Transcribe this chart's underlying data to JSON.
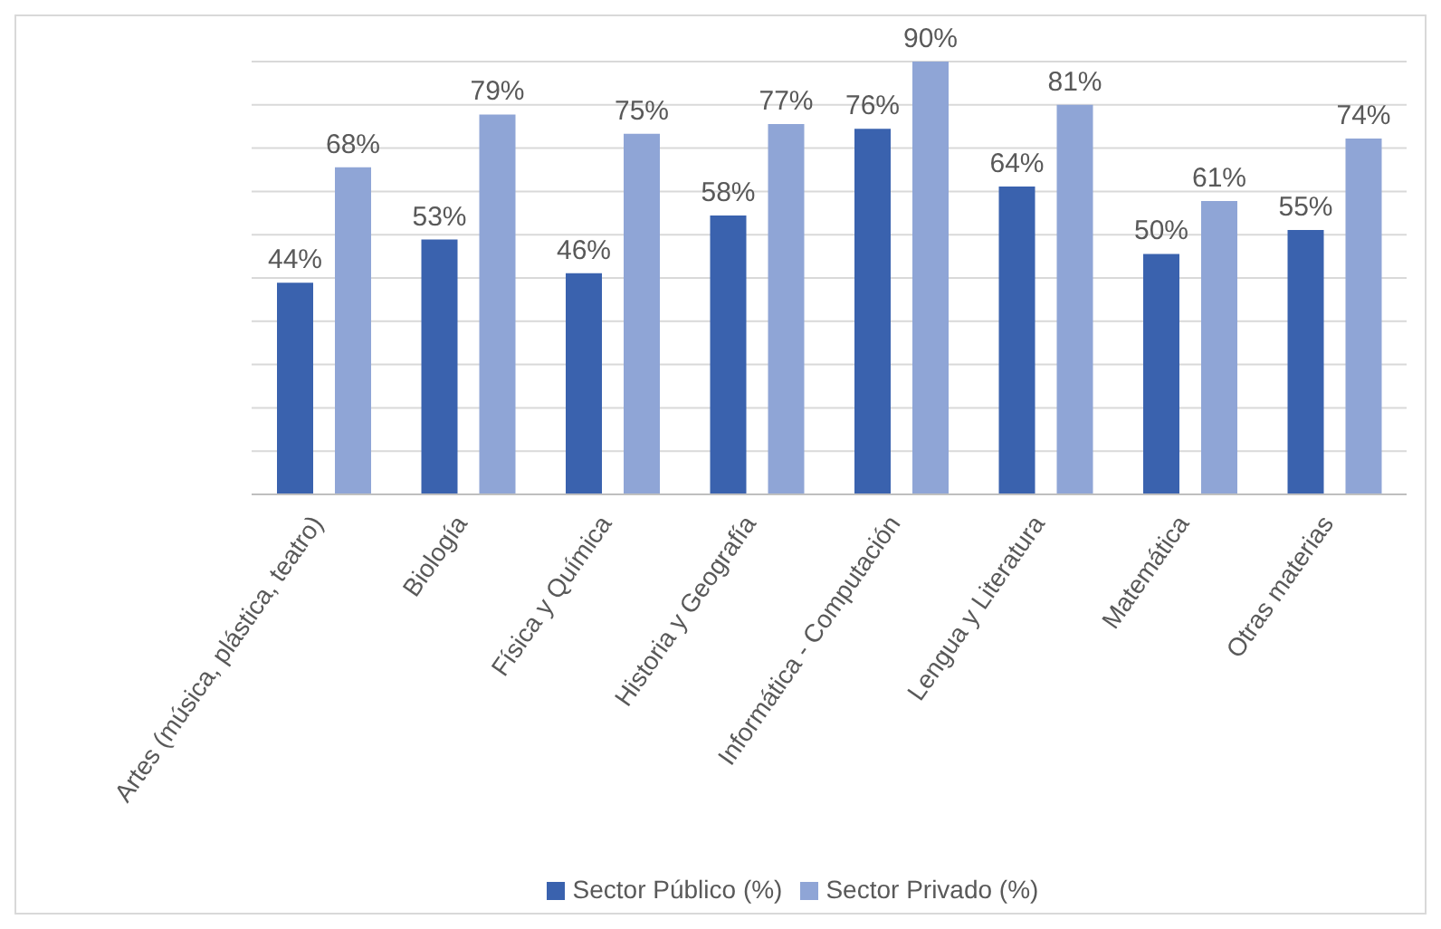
{
  "chart_data": {
    "type": "bar",
    "categories": [
      "Artes (música, plástica, teatro)",
      "Biología",
      "Física y Química",
      "Historia y Geografía",
      "Informática - Computación",
      "Lengua y Literatura",
      "Matemática",
      "Otras materias"
    ],
    "series": [
      {
        "name": "Sector Público (%)",
        "color": "#3a62ae",
        "values": [
          44,
          53,
          46,
          58,
          76,
          64,
          50,
          55
        ],
        "value_labels": [
          "44%",
          "53%",
          "46%",
          "58%",
          "76%",
          "64%",
          "50%",
          "55%"
        ]
      },
      {
        "name": "Sector Privado (%)",
        "color": "#8fa5d6",
        "values": [
          68,
          79,
          75,
          77,
          90,
          81,
          61,
          74
        ],
        "value_labels": [
          "68%",
          "79%",
          "75%",
          "77%",
          "90%",
          "81%",
          "61%",
          "74%"
        ]
      }
    ],
    "tick_labels": "x",
    "grid": "y",
    "legend": "bottom"
  }
}
